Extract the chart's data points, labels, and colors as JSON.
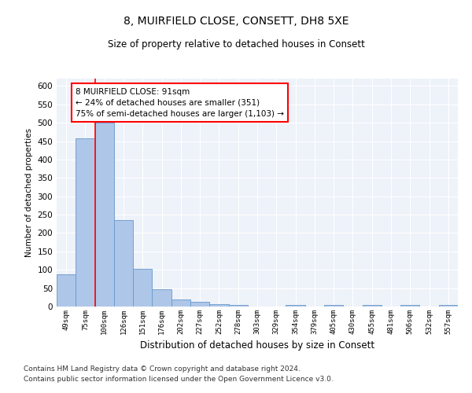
{
  "title": "8, MUIRFIELD CLOSE, CONSETT, DH8 5XE",
  "subtitle": "Size of property relative to detached houses in Consett",
  "xlabel": "Distribution of detached houses by size in Consett",
  "ylabel": "Number of detached properties",
  "bar_labels": [
    "49sqm",
    "75sqm",
    "100sqm",
    "126sqm",
    "151sqm",
    "176sqm",
    "202sqm",
    "227sqm",
    "252sqm",
    "278sqm",
    "303sqm",
    "329sqm",
    "354sqm",
    "379sqm",
    "405sqm",
    "430sqm",
    "455sqm",
    "481sqm",
    "506sqm",
    "532sqm",
    "557sqm"
  ],
  "bar_values": [
    88,
    458,
    500,
    235,
    103,
    47,
    19,
    12,
    7,
    4,
    0,
    0,
    4,
    0,
    4,
    0,
    4,
    0,
    4,
    0,
    4
  ],
  "bar_color": "#aec6e8",
  "bar_edgecolor": "#6699cc",
  "vline_color": "red",
  "vline_x": 1.5,
  "annotation_text_line1": "8 MUIRFIELD CLOSE: 91sqm",
  "annotation_text_line2": "← 24% of detached houses are smaller (351)",
  "annotation_text_line3": "75% of semi-detached houses are larger (1,103) →",
  "annotation_box_color": "white",
  "annotation_box_edgecolor": "red",
  "ylim": [
    0,
    620
  ],
  "yticks": [
    0,
    50,
    100,
    150,
    200,
    250,
    300,
    350,
    400,
    450,
    500,
    550,
    600
  ],
  "bg_color": "#eef2f9",
  "grid_color": "white",
  "footer_line1": "Contains HM Land Registry data © Crown copyright and database right 2024.",
  "footer_line2": "Contains public sector information licensed under the Open Government Licence v3.0."
}
